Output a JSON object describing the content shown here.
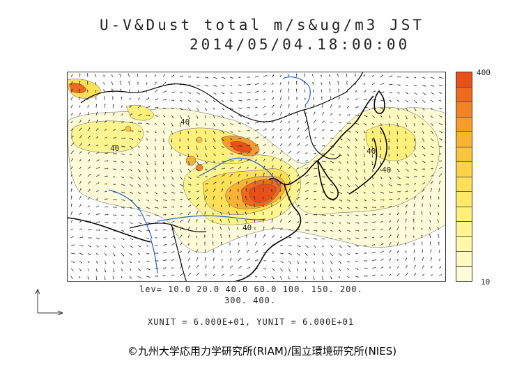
{
  "title": "U-V&Dust total m/s&ug/m3 JST",
  "datetime": "2014/05/04.18:00:00",
  "colorbar": {
    "max_label": "400",
    "min_label": "10",
    "colors": [
      "#e8501a",
      "#ee6a1e",
      "#f28425",
      "#f69c2c",
      "#f8b234",
      "#fac43e",
      "#fcd347",
      "#fde055",
      "#feea66",
      "#fef07a",
      "#fef590",
      "#fef8a8",
      "#fefac0",
      "#fefcd8"
    ]
  },
  "levels_line1": "lev= 10.0 20.0 40.0 60.0 100. 150. 200.",
  "levels_line2": "300. 400.",
  "units": "XUNIT = 6.000E+01, YUNIT = 6.000E+01",
  "credit": "©九州大学応用力学研究所(RIAM)/国立環境研究所(NIES)",
  "map_labels": [
    "40",
    "40",
    "40",
    "40",
    "40"
  ],
  "colors": {
    "coast": "#000000",
    "river": "#1e5fd6",
    "grid": "#333333"
  }
}
